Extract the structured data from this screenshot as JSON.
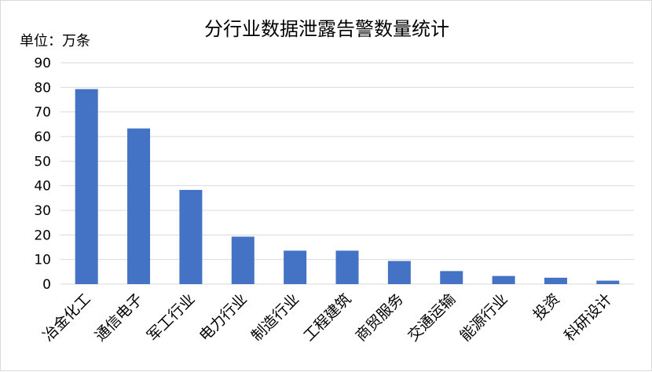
{
  "chart_data": {
    "type": "bar",
    "title": "分行业数据泄露告警数量统计",
    "ylabel": "单位：万条",
    "xlabel": "",
    "categories": [
      "冶金化工",
      "通信电子",
      "军工行业",
      "电力行业",
      "制造行业",
      "工程建筑",
      "商贸服务",
      "交通运输",
      "能源行业",
      "投资",
      "科研设计"
    ],
    "values": [
      79.3,
      63.3,
      38.3,
      19.3,
      13.6,
      13.6,
      9.4,
      5.3,
      3.3,
      2.6,
      1.4
    ],
    "ylim": [
      0,
      90
    ],
    "yticks": [
      0,
      10,
      20,
      30,
      40,
      50,
      60,
      70,
      80,
      90
    ],
    "grid": true,
    "legend": "none",
    "bar_color": "#4472c4",
    "grid_color": "#d9d9d9"
  }
}
